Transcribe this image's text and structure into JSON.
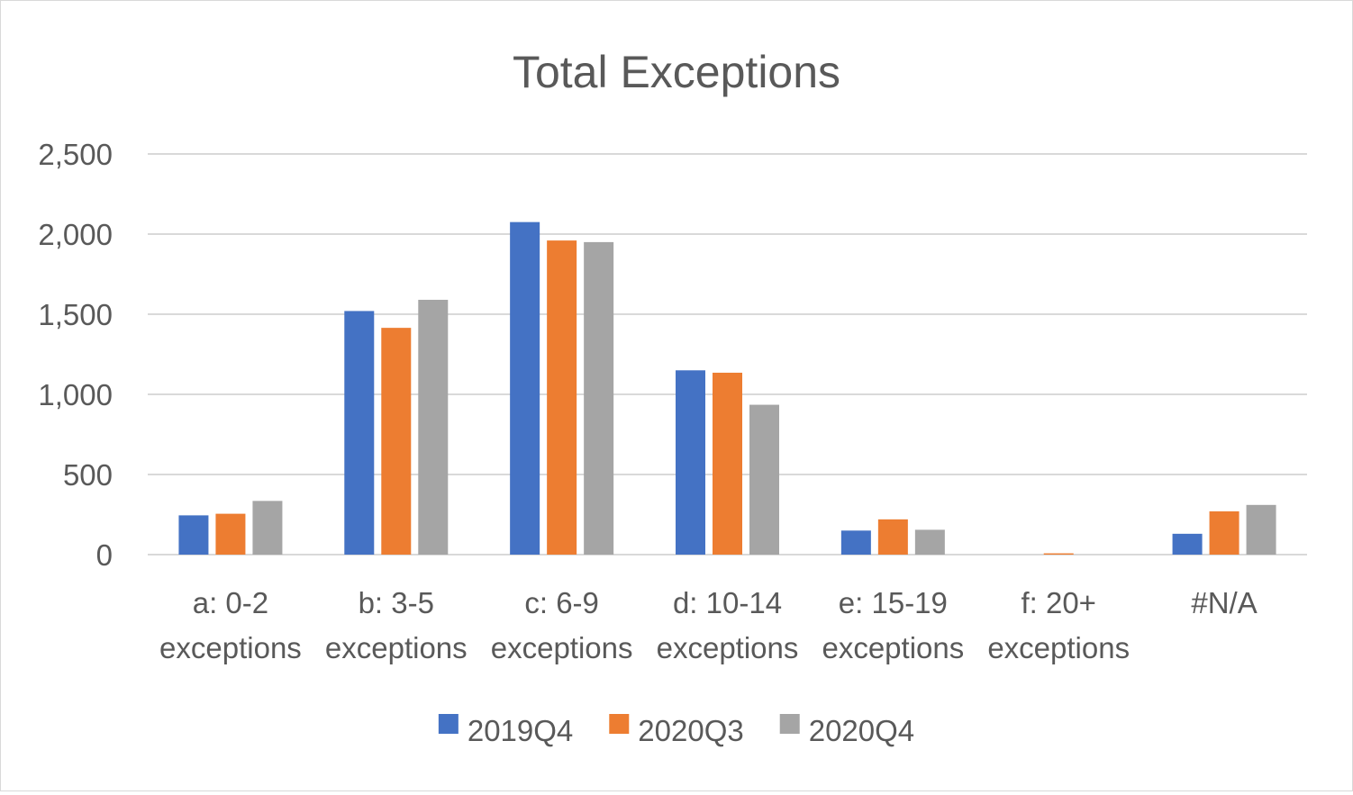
{
  "chart_data": {
    "type": "bar",
    "title": "Total Exceptions",
    "xlabel": "",
    "ylabel": "",
    "ylim": [
      0,
      2500
    ],
    "yticks": [
      0,
      500,
      1000,
      1500,
      2000,
      2500
    ],
    "ytick_labels": [
      "0",
      "500",
      "1,000",
      "1,500",
      "2,000",
      "2,500"
    ],
    "grid": true,
    "legend_position": "bottom",
    "categories": [
      [
        "a: 0-2",
        "exceptions"
      ],
      [
        "b: 3-5",
        "exceptions"
      ],
      [
        "c: 6-9",
        "exceptions"
      ],
      [
        "d: 10-14",
        "exceptions"
      ],
      [
        "e: 15-19",
        "exceptions"
      ],
      [
        "f: 20+",
        "exceptions"
      ],
      [
        "#N/A"
      ]
    ],
    "series": [
      {
        "name": "2019Q4",
        "color": "#4472c4",
        "values": [
          245,
          1520,
          2075,
          1150,
          150,
          0,
          130
        ]
      },
      {
        "name": "2020Q3",
        "color": "#ed7d31",
        "values": [
          255,
          1415,
          1960,
          1135,
          220,
          8,
          270
        ]
      },
      {
        "name": "2020Q4",
        "color": "#a5a5a5",
        "values": [
          335,
          1590,
          1950,
          935,
          155,
          0,
          310
        ]
      }
    ]
  }
}
